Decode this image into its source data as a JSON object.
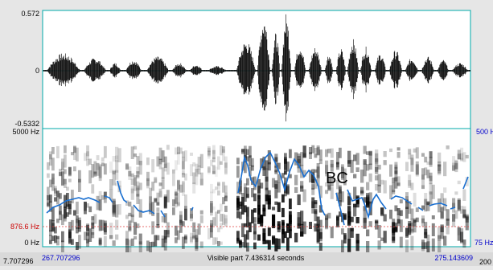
{
  "waveform": {
    "y_max_label": "0.572",
    "y_zero_label": "0",
    "y_min_label": "-0.5332"
  },
  "spectrogram": {
    "top_freq_label": "5000 Hz",
    "bottom_freq_label": "0 Hz",
    "cursor_freq_label": "876.6 Hz",
    "pitch_top_label": "500 H",
    "pitch_bottom_label": "75 Hz",
    "annotation": "BC"
  },
  "timebar": {
    "outer_left": "7.707296",
    "visible_start": "267.707296",
    "visible_label": "Visible part 7.436314 seconds",
    "visible_end": "275.143609",
    "outer_right": "200"
  },
  "colors": {
    "pitch": "#1a6fd0",
    "cursor": "#e04040",
    "frame": "#00aaaa",
    "labels_blue": "#0000cc"
  }
}
